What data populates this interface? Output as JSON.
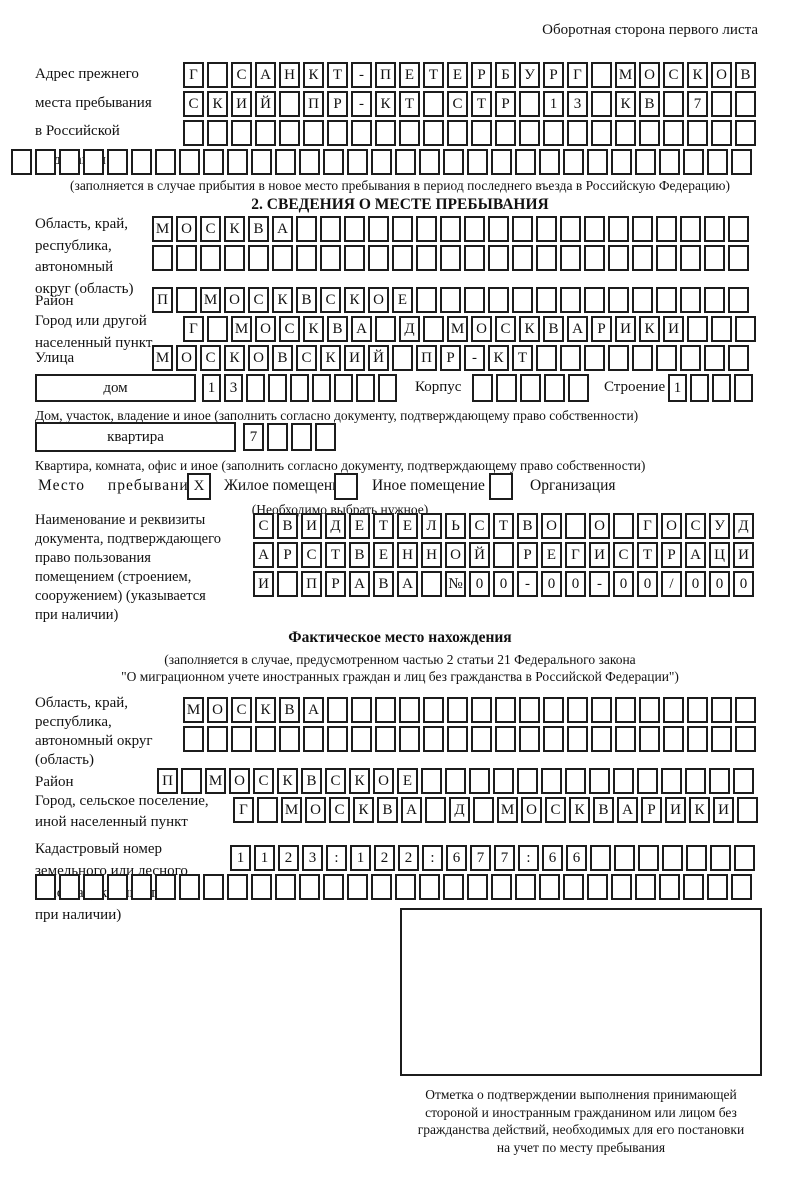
{
  "header_note": "Оборотная сторона первого листа",
  "prev": {
    "label": "Адрес прежнего\nместа пребывания\nв Российской\nФедерации",
    "rows": [
      {
        "cells": 24,
        "text": "Г САНКТ-ПЕТЕРБУРГ МОСКОВ"
      },
      {
        "cells": 24,
        "text": "СКИЙ ПР-КТ СТР 13 КВ 7"
      },
      {
        "cells": 24,
        "text": ""
      },
      {
        "cells": 31,
        "text": ""
      }
    ],
    "caption": "(заполняется в случае прибытия в новое место пребывания в период последнего въезда в Российскую Федерацию)"
  },
  "section2": {
    "title": "2. СВЕДЕНИЯ О МЕСТЕ ПРЕБЫВАНИЯ",
    "region": {
      "label": "Область, край,\nреспублика,\nавтономный\nокруг (область)",
      "rows": [
        {
          "cells": 25,
          "text": "МОСКВА"
        },
        {
          "cells": 25,
          "text": ""
        }
      ]
    },
    "district": {
      "label": "Район",
      "row": {
        "cells": 25,
        "text": "П МОСКВСКОЕ"
      }
    },
    "city": {
      "label": "Город или другой\nнаселенный пункт",
      "row": {
        "cells": 24,
        "text": "Г МОСКВА Д МОСКВАРИКИ"
      }
    },
    "street": {
      "label": "Улица",
      "row": {
        "cells": 25,
        "text": "МОСКОВСКИЙ ПР-КТ"
      }
    },
    "house": {
      "box_label": "дом",
      "num": {
        "cells": 9,
        "text": "13"
      },
      "korpus_label": "Корпус",
      "korpus": {
        "cells": 5,
        "text": ""
      },
      "stroenie_label": "Строение",
      "stroenie": {
        "cells": 4,
        "text": "1"
      },
      "caption": "Дом, участок, владение и иное (заполнить согласно документу, подтверждающему право собственности)"
    },
    "apartment": {
      "box_label": "квартира",
      "num": {
        "cells": 4,
        "text": "7"
      },
      "caption": "Квартира, комната, офис и иное (заполнить согласно документу, подтверждающему право собственности)"
    },
    "stay_type": {
      "label": "Место пребывания:",
      "checked_mark": "X",
      "option1": "Жилое помещение",
      "option2": "Иное помещение",
      "option3": "Организация",
      "hint": "(Необходимо выбрать нужное)"
    },
    "doc": {
      "label": "Наименование и реквизиты\nдокумента, подтверждающего\nправо пользования\nпомещением (строением,\nсооружением) (указывается\nпри наличии)",
      "rows": [
        {
          "cells": 21,
          "text": "СВИДЕТЕЛЬСТВО О ГОСУД"
        },
        {
          "cells": 21,
          "text": "АРСТВЕННОЙ РЕГИСТРАЦИ"
        },
        {
          "cells": 21,
          "text": "И ПРАВА №00-00-00/000"
        }
      ]
    }
  },
  "actual": {
    "title": "Фактическое место нахождения",
    "caption1": "(заполняется в случае, предусмотренном частью 2 статьи 21 Федерального закона",
    "caption2": "\"О миграционном учете иностранных граждан и лиц без гражданства в Российской Федерации\")",
    "region": {
      "label": "Область, край,\nреспублика,\nавтономный округ\n(область)",
      "rows": [
        {
          "cells": 24,
          "text": "МОСКВА"
        },
        {
          "cells": 24,
          "text": ""
        }
      ]
    },
    "district": {
      "label": "Район",
      "row": {
        "cells": 25,
        "text": "П МОСКВСКОЕ"
      }
    },
    "city": {
      "label": "Город, сельское поселение,\nиной населенный пункт",
      "row": {
        "cells": 22,
        "text": "Г МОСКВА Д МОСКВАРИКИ"
      }
    },
    "cadastre": {
      "label": "Кадастровый номер\nземельного или лесного\nучастка (указывается\nпри наличии)",
      "rows": [
        {
          "cells": 22,
          "text": "1123:122:677:66"
        },
        {
          "cells": 30,
          "text": ""
        }
      ]
    },
    "stamp_caption": "Отметка о подтверждении выполнения принимающей\nстороной и иностранным гражданином или лицом без\nгражданства действий, необходимых для его постановки\nна учет по месту пребывания"
  }
}
